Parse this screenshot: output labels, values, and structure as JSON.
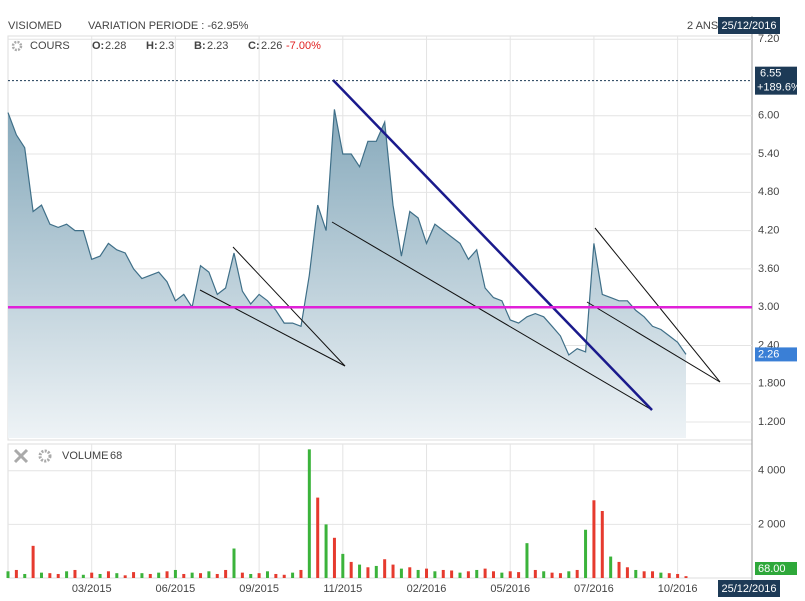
{
  "header": {
    "name": "VISIOMED",
    "variation": "VARIATION PERIODE : -62.95%",
    "period": "2 ANS",
    "date": "25/12/2016"
  },
  "chart_data": [
    {
      "type": "area",
      "title": "COURS",
      "ohlc": {
        "open_label": "O:",
        "open": 2.28,
        "high_label": "H:",
        "high": 2.3,
        "low_label": "B:",
        "low": 2.23,
        "close_label": "C:",
        "close": 2.26,
        "change": "-7.00%"
      },
      "values": [
        6.05,
        5.7,
        5.5,
        4.5,
        4.6,
        4.3,
        4.25,
        4.3,
        4.2,
        4.2,
        3.75,
        3.8,
        4.0,
        3.9,
        3.85,
        3.6,
        3.45,
        3.5,
        3.55,
        3.4,
        3.1,
        3.2,
        3.0,
        3.65,
        3.55,
        3.2,
        3.3,
        3.85,
        3.25,
        3.05,
        3.2,
        3.1,
        2.95,
        2.75,
        2.75,
        2.7,
        3.5,
        4.6,
        4.2,
        6.1,
        5.4,
        5.4,
        5.2,
        5.6,
        5.6,
        5.9,
        4.6,
        3.8,
        4.5,
        4.4,
        4.0,
        4.3,
        4.2,
        4.1,
        4.0,
        3.75,
        3.9,
        3.3,
        3.15,
        3.1,
        2.8,
        2.75,
        2.85,
        2.9,
        2.85,
        2.7,
        2.55,
        2.25,
        2.35,
        2.3,
        4.0,
        3.2,
        3.15,
        3.1,
        3.1,
        2.95,
        2.85,
        2.7,
        2.65,
        2.55,
        2.45,
        2.26
      ],
      "color": "#3f6f88",
      "ylim": [
        0.95,
        7.25
      ],
      "yticks": [
        {
          "value": 7.2,
          "label": "7.20"
        },
        {
          "value": 6.0,
          "label": "6.00"
        },
        {
          "value": 5.4,
          "label": "5.40"
        },
        {
          "value": 4.8,
          "label": "4.80"
        },
        {
          "value": 4.2,
          "label": "4.20"
        },
        {
          "value": 3.6,
          "label": "3.60"
        },
        {
          "value": 3.0,
          "label": "3.00"
        },
        {
          "value": 2.4,
          "label": "2.40"
        },
        {
          "value": 1.8,
          "label": "1.800"
        },
        {
          "value": 1.2,
          "label": "1.200"
        }
      ],
      "reference": {
        "value": 6.55,
        "change": "+189.6%"
      },
      "level": {
        "value": 3.0,
        "color": "#e020d8"
      },
      "grid": true
    },
    {
      "type": "bar",
      "title": "VOLUME",
      "last": 68,
      "last_label": "68.00",
      "categories": [
        null,
        null,
        null,
        null,
        null,
        null,
        null,
        null,
        null,
        null,
        "03/2015",
        null,
        null,
        null,
        null,
        null,
        null,
        null,
        null,
        null,
        "06/2015",
        null,
        null,
        null,
        null,
        null,
        null,
        null,
        null,
        null,
        "09/2015",
        null,
        null,
        null,
        null,
        null,
        null,
        null,
        null,
        null,
        "11/2015",
        null,
        null,
        null,
        null,
        null,
        null,
        null,
        null,
        null,
        "02/2016",
        null,
        null,
        null,
        null,
        null,
        null,
        null,
        null,
        null,
        "05/2016",
        null,
        null,
        null,
        null,
        null,
        null,
        null,
        null,
        null,
        "07/2016",
        null,
        null,
        null,
        null,
        null,
        null,
        null,
        null,
        null,
        "10/2016",
        null
      ],
      "values": [
        250,
        300,
        150,
        1200,
        200,
        180,
        150,
        250,
        300,
        120,
        200,
        150,
        250,
        180,
        100,
        220,
        180,
        150,
        200,
        250,
        300,
        150,
        200,
        180,
        250,
        150,
        300,
        1100,
        200,
        150,
        180,
        250,
        150,
        120,
        200,
        300,
        4800,
        3000,
        2000,
        1500,
        900,
        600,
        500,
        400,
        450,
        700,
        500,
        350,
        400,
        300,
        350,
        250,
        300,
        280,
        200,
        250,
        300,
        350,
        250,
        200,
        250,
        220,
        1300,
        300,
        250,
        200,
        180,
        250,
        300,
        1800,
        2900,
        2500,
        800,
        600,
        400,
        300,
        250,
        250,
        200,
        180,
        150,
        68
      ],
      "colors": [
        "#3bb33b",
        "#e63a2e",
        "#3bb33b",
        "#e63a2e",
        "#3bb33b",
        "#e63a2e",
        "#e63a2e",
        "#3bb33b",
        "#e63a2e",
        "#3bb33b",
        "#e63a2e",
        "#3bb33b",
        "#e63a2e",
        "#3bb33b",
        "#e63a2e",
        "#e63a2e",
        "#3bb33b",
        "#e63a2e",
        "#3bb33b",
        "#e63a2e",
        "#3bb33b",
        "#e63a2e",
        "#3bb33b",
        "#e63a2e",
        "#3bb33b",
        "#e63a2e",
        "#e63a2e",
        "#3bb33b",
        "#e63a2e",
        "#3bb33b",
        "#e63a2e",
        "#3bb33b",
        "#e63a2e",
        "#e63a2e",
        "#3bb33b",
        "#e63a2e",
        "#3bb33b",
        "#e63a2e",
        "#3bb33b",
        "#e63a2e",
        "#3bb33b",
        "#e63a2e",
        "#3bb33b",
        "#e63a2e",
        "#3bb33b",
        "#e63a2e",
        "#e63a2e",
        "#3bb33b",
        "#e63a2e",
        "#3bb33b",
        "#e63a2e",
        "#3bb33b",
        "#e63a2e",
        "#e63a2e",
        "#3bb33b",
        "#e63a2e",
        "#3bb33b",
        "#e63a2e",
        "#e63a2e",
        "#3bb33b",
        "#e63a2e",
        "#e63a2e",
        "#3bb33b",
        "#e63a2e",
        "#3bb33b",
        "#e63a2e",
        "#e63a2e",
        "#3bb33b",
        "#e63a2e",
        "#3bb33b",
        "#e63a2e",
        "#e63a2e",
        "#3bb33b",
        "#e63a2e",
        "#e63a2e",
        "#3bb33b",
        "#e63a2e",
        "#e63a2e",
        "#3bb33b",
        "#e63a2e",
        "#e63a2e",
        "#e63a2e"
      ],
      "ylim": [
        0,
        5000
      ],
      "yticks": [
        {
          "value": 4000,
          "label": "4 000"
        },
        {
          "value": 2000,
          "label": "2 000"
        }
      ],
      "grid": true
    }
  ]
}
